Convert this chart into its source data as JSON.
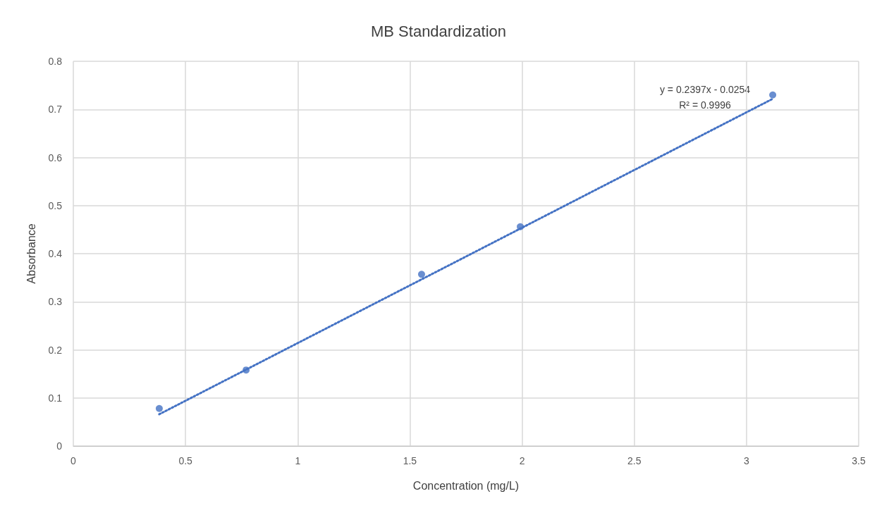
{
  "chart_data": {
    "type": "scatter",
    "title": "MB Standardization",
    "xlabel": "Concentration (mg/L)",
    "ylabel": "Absorbance",
    "xlim": [
      0,
      3.5
    ],
    "xticks": [
      0,
      0.5,
      1,
      1.5,
      2,
      2.5,
      3,
      3.5
    ],
    "ylim": [
      0,
      0.8
    ],
    "yticks": [
      0,
      0.1,
      0.2,
      0.3,
      0.4,
      0.5,
      0.6,
      0.7,
      0.8
    ],
    "grid": true,
    "annotations": [
      "y = 0.2397x - 0.0254",
      "R² = 0.9996"
    ],
    "series": [
      {
        "color": "#4472c4",
        "marker": "circle",
        "x": [
          0.383,
          0.77,
          1.552,
          1.992,
          3.117
        ],
        "values": [
          0.078,
          0.158,
          0.357,
          0.456,
          0.73
        ]
      },
      {
        "type": "line",
        "color": "#4472c4",
        "marker": "none",
        "line_style": "dotted",
        "x": [
          0.383,
          3.117
        ],
        "values": [
          0.066,
          0.722
        ]
      }
    ]
  }
}
